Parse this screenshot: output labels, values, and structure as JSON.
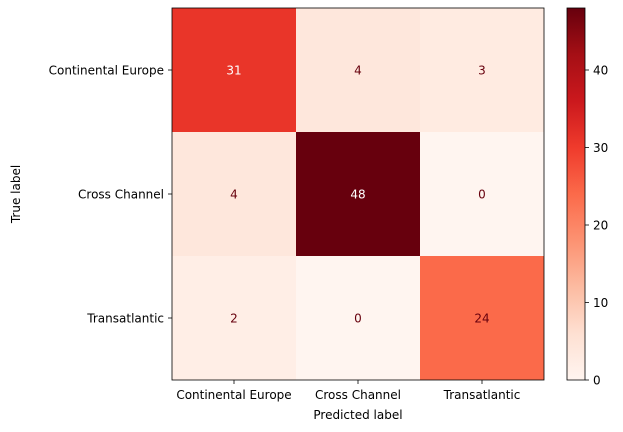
{
  "chart_data": {
    "type": "heatmap",
    "title": "",
    "xlabel": "Predicted label",
    "ylabel": "True label",
    "x_categories": [
      "Continental Europe",
      "Cross Channel",
      "Transatlantic"
    ],
    "y_categories": [
      "Continental Europe",
      "Cross Channel",
      "Transatlantic"
    ],
    "values": [
      [
        31,
        4,
        3
      ],
      [
        4,
        48,
        0
      ],
      [
        2,
        0,
        24
      ]
    ],
    "colormap": "Reds",
    "color_range": [
      0,
      48
    ],
    "colorbar_ticks": [
      0,
      10,
      20,
      30,
      40
    ],
    "grid": false,
    "text_color_light": "#ffffff",
    "text_color_dark": "#67000d"
  }
}
